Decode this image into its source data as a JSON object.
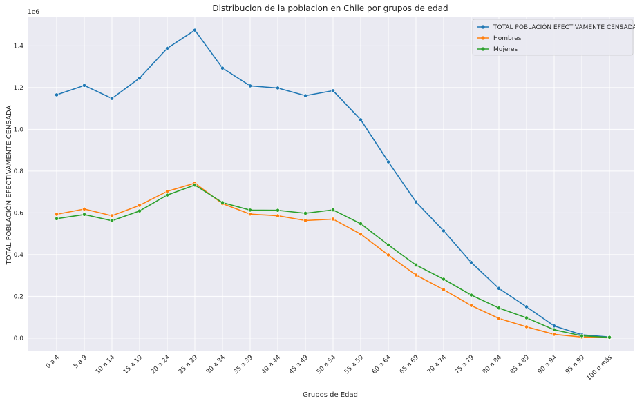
{
  "chart_data": {
    "type": "line",
    "title": "Distribucion de la poblacion en Chile por grupos de edad",
    "xlabel": "Grupos de Edad",
    "ylabel": "TOTAL POBLACIÓN EFECTIVAMENTE CENSADA",
    "y_scale_label": "1e6",
    "y_unit": 1000000,
    "ylim": [
      -60000,
      1540000
    ],
    "yticks": [
      0.0,
      0.2,
      0.4,
      0.6,
      0.8,
      1.0,
      1.2,
      1.4
    ],
    "grid": true,
    "legend_position": "top-right",
    "categories": [
      "0 a 4",
      "5 a 9",
      "10 a 14",
      "15 a 19",
      "20 a 24",
      "25 a 29",
      "30 a 34",
      "35 a 39",
      "40 a 44",
      "45 a 49",
      "50 a 54",
      "55 a 59",
      "60 a 64",
      "65 a 69",
      "70 a 74",
      "75 a 79",
      "80 a 84",
      "85 a 89",
      "90 a 94",
      "95 a 99",
      "100 o más"
    ],
    "series": [
      {
        "name": "TOTAL POBLACIÓN EFECTIVAMENTE CENSADA",
        "color": "#1f77b4",
        "values": [
          1165000,
          1210000,
          1148000,
          1245000,
          1388000,
          1475000,
          1293000,
          1208000,
          1198000,
          1161000,
          1185000,
          1046000,
          844000,
          652000,
          514000,
          362000,
          238000,
          150000,
          58000,
          16000,
          5000
        ]
      },
      {
        "name": "Hombres",
        "color": "#ff7f0e",
        "values": [
          593000,
          618000,
          586000,
          636000,
          703000,
          742000,
          644000,
          594000,
          586000,
          563000,
          570000,
          498000,
          398000,
          302000,
          232000,
          156000,
          94000,
          54000,
          18000,
          5000,
          1500
        ]
      },
      {
        "name": "Mujeres",
        "color": "#2ca02c",
        "values": [
          572000,
          592000,
          562000,
          609000,
          685000,
          733000,
          649000,
          613000,
          612000,
          598000,
          614000,
          548000,
          446000,
          350000,
          282000,
          206000,
          144000,
          97000,
          40000,
          11000,
          3500
        ]
      }
    ]
  }
}
